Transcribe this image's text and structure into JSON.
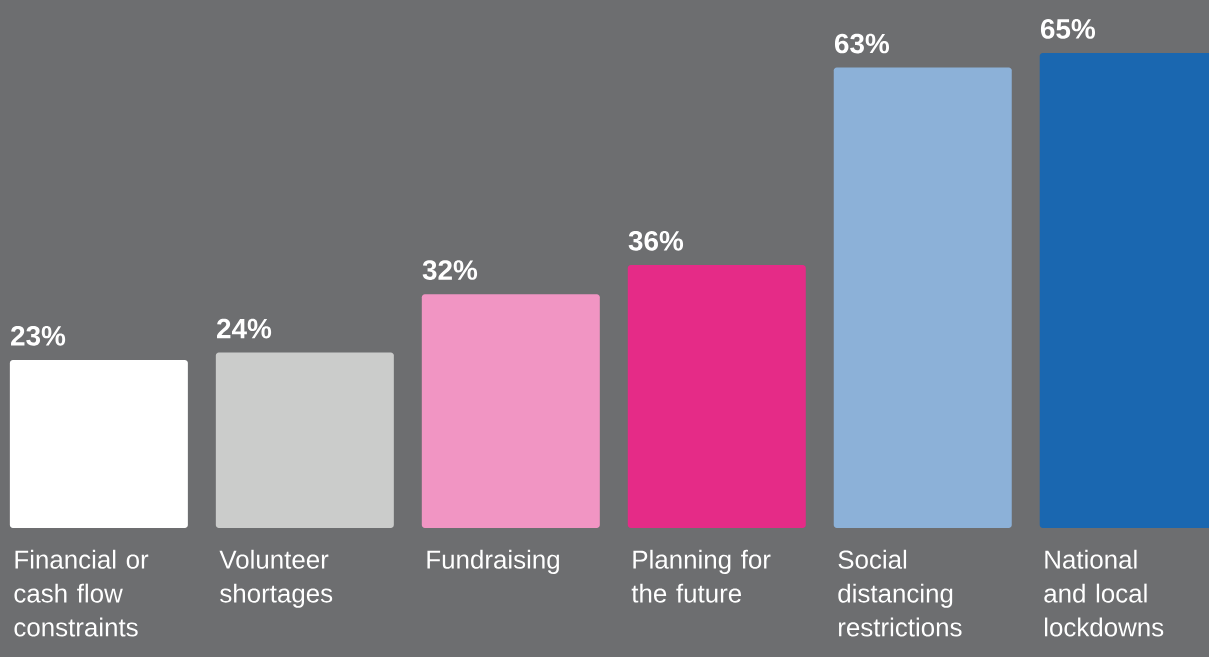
{
  "chart_data": {
    "type": "bar",
    "categories": [
      "Financial or cash flow constraints",
      "Volunteer shortages",
      "Fundraising",
      "Planning for the future",
      "Social distancing restrictions",
      "National and local lockdowns"
    ],
    "values": [
      23,
      24,
      32,
      36,
      63,
      65
    ],
    "colors": [
      "#ffffff",
      "#cbcccb",
      "#f195c3",
      "#e52b87",
      "#8cb1d8",
      "#1a67b0"
    ],
    "value_labels": [
      "23%",
      "24%",
      "32%",
      "36%",
      "63%",
      "65%"
    ]
  }
}
